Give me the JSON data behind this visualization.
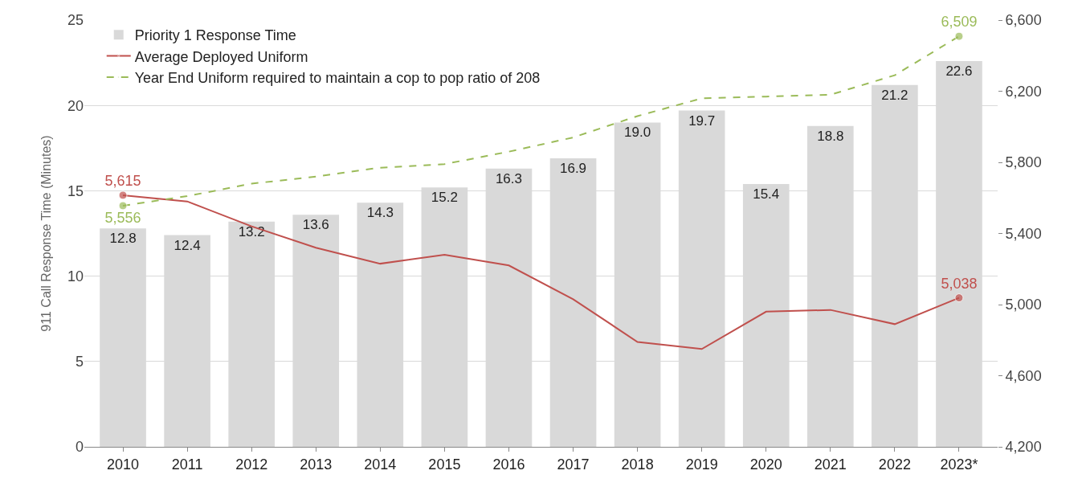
{
  "chart_data": {
    "type": "bar",
    "ylabel": "911 Call Response Time (Minutes)",
    "categories": [
      "2010",
      "2011",
      "2012",
      "2013",
      "2014",
      "2015",
      "2016",
      "2017",
      "2018",
      "2019",
      "2020",
      "2021",
      "2022",
      "2023*"
    ],
    "series": [
      {
        "name": "Priority 1 Response Time",
        "color": "#d9d9d9",
        "values": [
          12.8,
          12.4,
          13.2,
          13.6,
          14.3,
          15.2,
          16.3,
          16.9,
          19.0,
          19.7,
          15.4,
          18.8,
          21.2,
          22.6
        ],
        "value_labels": [
          "12.8",
          "12.4",
          "13.2",
          "13.6",
          "14.3",
          "15.2",
          "16.3",
          "16.9",
          "19.0",
          "19.7",
          "15.4",
          "18.8",
          "21.2",
          "22.6"
        ]
      },
      {
        "name": "Average Deployed Uniform",
        "type": "line",
        "axis": "y2",
        "color": "#c0504d",
        "line_style": "solid",
        "values": [
          5615,
          5580,
          5440,
          5320,
          5230,
          5280,
          5220,
          5030,
          4790,
          4750,
          4960,
          4970,
          4890,
          5038
        ],
        "value_labels": [
          "5,615",
          null,
          null,
          null,
          null,
          null,
          null,
          null,
          null,
          null,
          null,
          null,
          null,
          "5,038"
        ]
      },
      {
        "name": "Year End Uniform required to maintain a cop to pop ratio of 208",
        "type": "line",
        "axis": "y2",
        "color": "#9bbb59",
        "line_style": "dashed",
        "values": [
          5556,
          5610,
          5680,
          5720,
          5770,
          5790,
          5860,
          5940,
          6060,
          6160,
          6170,
          6180,
          6290,
          6509
        ],
        "value_labels": [
          "5,556",
          null,
          null,
          null,
          null,
          null,
          null,
          null,
          null,
          null,
          null,
          null,
          null,
          "6,509"
        ]
      }
    ],
    "ylim": [
      0,
      25
    ],
    "yticks": [
      0,
      5,
      10,
      15,
      20,
      25
    ],
    "y2lim": [
      4200,
      6600
    ],
    "y2ticks": [
      {
        "value": 4200,
        "label": "4,200"
      },
      {
        "value": 4600,
        "label": "4,600"
      },
      {
        "value": 5000,
        "label": "5,000"
      },
      {
        "value": 5400,
        "label": "5,400"
      },
      {
        "value": 5800,
        "label": "5,800"
      },
      {
        "value": 6200,
        "label": "6,200"
      },
      {
        "value": 6600,
        "label": "6,600"
      }
    ],
    "grid": "y",
    "legend": "top left"
  }
}
